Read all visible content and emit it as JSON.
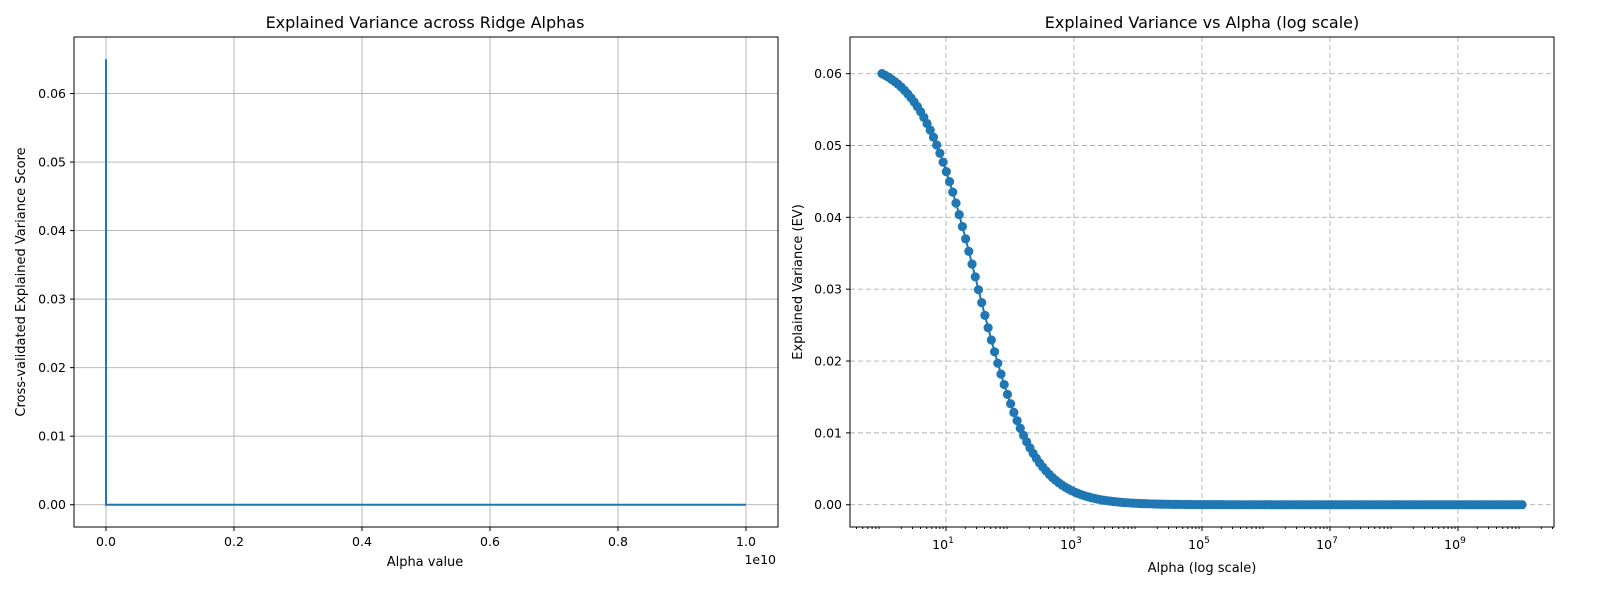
{
  "colors": {
    "series": "#1f77b4"
  },
  "chart_data": [
    {
      "type": "line",
      "title": "Explained Variance across Ridge Alphas",
      "xlabel": "Alpha value",
      "ylabel": "Cross-validated Explained Variance Score",
      "x_scale": "linear",
      "xlim": [
        -0.05,
        1.05
      ],
      "ylim": [
        -0.00325,
        0.06825
      ],
      "x_multiplier": "1e10",
      "x_ticks": [
        0.0,
        0.2,
        0.4,
        0.6,
        0.8,
        1.0
      ],
      "x_tick_labels": [
        "0.0",
        "0.2",
        "0.4",
        "0.6",
        "0.8",
        "1.0"
      ],
      "y_ticks": [
        0.0,
        0.01,
        0.02,
        0.03,
        0.04,
        0.05,
        0.06
      ],
      "y_tick_labels": [
        "0.00",
        "0.01",
        "0.02",
        "0.03",
        "0.04",
        "0.05",
        "0.06"
      ],
      "grid": "solid",
      "markers": false,
      "series": [
        {
          "name": "EV",
          "x": [
            0,
            1e-07,
            0.001,
            1.0
          ],
          "y": [
            0.065,
            0.0,
            0.0,
            0.0
          ]
        }
      ]
    },
    {
      "type": "line",
      "title": "Explained Variance vs Alpha (log scale)",
      "xlabel": "Alpha (log scale)",
      "ylabel": "Explained Variance (EV)",
      "x_scale": "log",
      "xlim_log10": [
        -0.5,
        10.5
      ],
      "ylim": [
        -0.0031,
        0.0651
      ],
      "x_ticks_log10": [
        1,
        3,
        5,
        7,
        9
      ],
      "x_tick_base": "10",
      "x_tick_exponents": [
        "1",
        "3",
        "5",
        "7",
        "9"
      ],
      "y_ticks": [
        0.0,
        0.01,
        0.02,
        0.03,
        0.04,
        0.05,
        0.06
      ],
      "y_tick_labels": [
        "0.00",
        "0.01",
        "0.02",
        "0.03",
        "0.04",
        "0.05",
        "0.06"
      ],
      "grid": "dashed",
      "markers": true,
      "series": [
        {
          "name": "EV",
          "x_log10_start": 0,
          "x_log10_end": 10,
          "n_points": 200,
          "y_model": "0.062 / (1 + alpha / 30)"
        }
      ]
    }
  ]
}
